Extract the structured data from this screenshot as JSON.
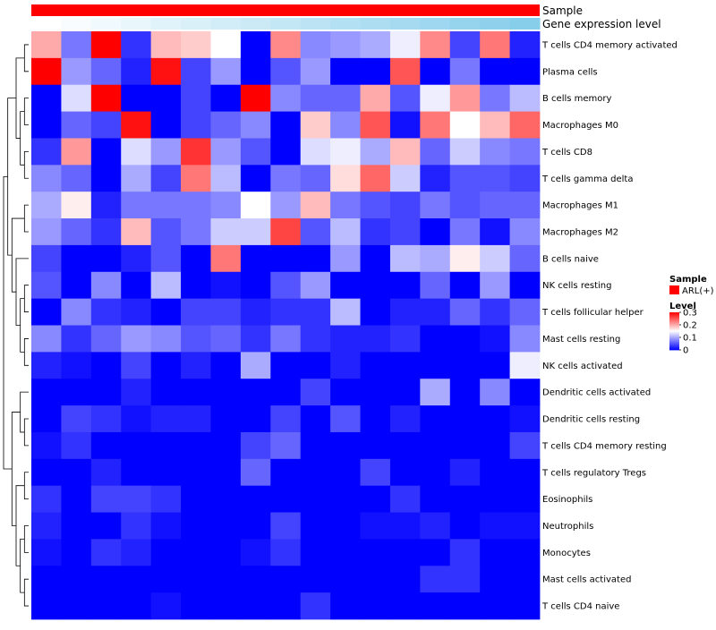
{
  "chart_data": {
    "type": "heatmap",
    "annotation_tracks": [
      {
        "name": "Sample",
        "color": "#ff0000"
      },
      {
        "name": "Gene expression level",
        "gradient_low": "#ffffff",
        "gradient_high": "#87ceeb"
      }
    ],
    "rows": [
      "T cells CD4 memory activated",
      "Plasma cells",
      "B cells memory",
      "Macrophages M0",
      "T cells CD8",
      "T cells gamma delta",
      "Macrophages M1",
      "Macrophages M2",
      "B cells naive",
      "NK cells resting",
      "T cells follicular helper",
      "Mast cells resting",
      "NK cells activated",
      "Dendritic cells activated",
      "Dendritic cells resting",
      "T cells CD4 memory resting",
      "T cells regulatory  Tregs",
      "Eosinophils",
      "Neutrophils",
      "Monocytes",
      "Mast cells activated",
      "T cells CD4 naive"
    ],
    "n_columns": 17,
    "values": [
      [
        0.2,
        0.07,
        0.3,
        0.03,
        0.19,
        0.18,
        0.15,
        0.0,
        0.22,
        0.08,
        0.09,
        0.1,
        0.14,
        0.22,
        0.04,
        0.23,
        0.02
      ],
      [
        0.3,
        0.09,
        0.06,
        0.02,
        0.29,
        0.04,
        0.09,
        0.0,
        0.05,
        0.09,
        0.0,
        0.0,
        0.25,
        0.0,
        0.07,
        0.0,
        0.0
      ],
      [
        0.0,
        0.13,
        0.3,
        0.0,
        0.0,
        0.04,
        0.0,
        0.3,
        0.08,
        0.06,
        0.06,
        0.2,
        0.05,
        0.14,
        0.21,
        0.07,
        0.11
      ],
      [
        0.0,
        0.06,
        0.04,
        0.29,
        0.0,
        0.04,
        0.06,
        0.08,
        0.0,
        0.18,
        0.08,
        0.25,
        0.01,
        0.23,
        0.15,
        0.19,
        0.24
      ],
      [
        0.03,
        0.21,
        0.0,
        0.13,
        0.09,
        0.27,
        0.09,
        0.05,
        0.0,
        0.13,
        0.14,
        0.1,
        0.19,
        0.06,
        0.12,
        0.08,
        0.07
      ],
      [
        0.08,
        0.06,
        0.0,
        0.1,
        0.04,
        0.23,
        0.11,
        0.0,
        0.07,
        0.06,
        0.17,
        0.24,
        0.12,
        0.02,
        0.05,
        0.05,
        0.04
      ],
      [
        0.1,
        0.16,
        0.02,
        0.07,
        0.07,
        0.07,
        0.08,
        0.15,
        0.09,
        0.19,
        0.07,
        0.05,
        0.04,
        0.07,
        0.05,
        0.06,
        0.06
      ],
      [
        0.09,
        0.06,
        0.03,
        0.19,
        0.05,
        0.07,
        0.12,
        0.12,
        0.26,
        0.05,
        0.11,
        0.03,
        0.04,
        0.0,
        0.07,
        0.01,
        0.08
      ],
      [
        0.04,
        0.0,
        0.0,
        0.02,
        0.05,
        0.0,
        0.23,
        0.0,
        0.0,
        0.0,
        0.09,
        0.0,
        0.11,
        0.1,
        0.16,
        0.12,
        0.06
      ],
      [
        0.05,
        0.0,
        0.08,
        0.0,
        0.11,
        0.0,
        0.01,
        0.0,
        0.05,
        0.09,
        0.0,
        0.0,
        0.0,
        0.06,
        0.0,
        0.09,
        0.0
      ],
      [
        0.0,
        0.08,
        0.03,
        0.02,
        0.0,
        0.04,
        0.04,
        0.02,
        0.03,
        0.03,
        0.11,
        0.0,
        0.02,
        0.02,
        0.06,
        0.03,
        0.06
      ],
      [
        0.08,
        0.03,
        0.06,
        0.09,
        0.08,
        0.05,
        0.06,
        0.03,
        0.07,
        0.03,
        0.02,
        0.02,
        0.03,
        0.0,
        0.0,
        0.01,
        0.08
      ],
      [
        0.02,
        0.01,
        0.0,
        0.04,
        0.0,
        0.02,
        0.0,
        0.1,
        0.0,
        0.0,
        0.02,
        0.0,
        0.0,
        0.0,
        0.0,
        0.0,
        0.14
      ],
      [
        0.0,
        0.0,
        0.0,
        0.02,
        0.0,
        0.0,
        0.0,
        0.0,
        0.0,
        0.04,
        0.0,
        0.0,
        0.0,
        0.1,
        0.0,
        0.08,
        0.0
      ],
      [
        0.0,
        0.04,
        0.03,
        0.01,
        0.02,
        0.02,
        0.0,
        0.0,
        0.04,
        0.0,
        0.05,
        0.0,
        0.02,
        0.0,
        0.0,
        0.0,
        0.01
      ],
      [
        0.01,
        0.03,
        0.0,
        0.0,
        0.0,
        0.0,
        0.0,
        0.04,
        0.06,
        0.0,
        0.0,
        0.0,
        0.0,
        0.0,
        0.0,
        0.0,
        0.04
      ],
      [
        0.0,
        0.0,
        0.02,
        0.0,
        0.0,
        0.0,
        0.0,
        0.06,
        0.0,
        0.0,
        0.0,
        0.04,
        0.0,
        0.0,
        0.02,
        0.0,
        0.0
      ],
      [
        0.03,
        0.0,
        0.04,
        0.04,
        0.03,
        0.0,
        0.0,
        0.0,
        0.0,
        0.0,
        0.0,
        0.0,
        0.03,
        0.0,
        0.0,
        0.0,
        0.0
      ],
      [
        0.02,
        0.0,
        0.0,
        0.03,
        0.01,
        0.0,
        0.0,
        0.0,
        0.04,
        0.0,
        0.0,
        0.01,
        0.01,
        0.02,
        0.0,
        0.01,
        0.01
      ],
      [
        0.01,
        0.0,
        0.03,
        0.02,
        0.0,
        0.0,
        0.0,
        0.01,
        0.03,
        0.0,
        0.0,
        0.0,
        0.0,
        0.0,
        0.03,
        0.0,
        0.0
      ],
      [
        0.0,
        0.0,
        0.0,
        0.0,
        0.0,
        0.0,
        0.0,
        0.0,
        0.0,
        0.0,
        0.0,
        0.0,
        0.0,
        0.03,
        0.03,
        0.0,
        0.0
      ],
      [
        0.0,
        0.0,
        0.0,
        0.0,
        0.01,
        0.0,
        0.0,
        0.0,
        0.0,
        0.03,
        0.0,
        0.0,
        0.0,
        0.0,
        0.0,
        0.0,
        0.0
      ]
    ],
    "color_scale": {
      "min": 0,
      "max": 0.3,
      "low_color": "#0000ff",
      "mid_color": "#ffffff",
      "high_color": "#ff0000",
      "midpoint": 0.15
    },
    "legend": {
      "sample": {
        "title": "Sample",
        "entries": [
          {
            "label": "ARL(+)",
            "color": "#ff0000"
          }
        ]
      },
      "level": {
        "title": "Level",
        "ticks": [
          "0.3",
          "0.2",
          "0.1",
          "0"
        ],
        "tick_values": [
          0.3,
          0.2,
          0.1,
          0
        ]
      }
    },
    "row_dendrogram": {
      "tree": [
        [
          [
            [
              0,
              1
            ],
            [
              [
                2,
                3
              ],
              [
                4,
                5
              ]
            ]
          ],
          [
            [
              6,
              7
            ],
            [
              8,
              [
                [
                  9,
                  10
                ],
                [
                  11,
                  12
                ]
              ]
            ]
          ]
        ],
        [
          [
            13,
            [
              14,
              15
            ]
          ],
          [
            [
              16,
              17
            ],
            [
              [
                18,
                19
              ],
              [
                20,
                21
              ]
            ]
          ]
        ]
      ]
    }
  }
}
